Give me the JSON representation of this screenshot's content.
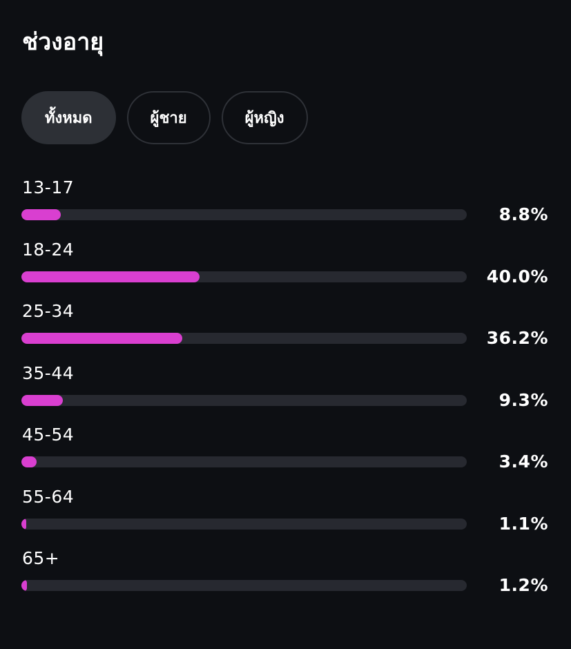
{
  "title": "ช่วงอายุ",
  "tabs": [
    {
      "label": "ทั้งหมด",
      "active": true
    },
    {
      "label": "ผู้ชาย",
      "active": false
    },
    {
      "label": "ผู้หญิง",
      "active": false
    }
  ],
  "accent_color": "#d93fd0",
  "age_ranges": [
    {
      "label": "13-17",
      "percent_text": "8.8%",
      "value": 8.8
    },
    {
      "label": "18-24",
      "percent_text": "40.0%",
      "value": 40.0
    },
    {
      "label": "25-34",
      "percent_text": "36.2%",
      "value": 36.2
    },
    {
      "label": "35-44",
      "percent_text": "9.3%",
      "value": 9.3
    },
    {
      "label": "45-54",
      "percent_text": "3.4%",
      "value": 3.4
    },
    {
      "label": "55-64",
      "percent_text": "1.1%",
      "value": 1.1
    },
    {
      "label": "65+",
      "percent_text": "1.2%",
      "value": 1.2
    }
  ]
}
